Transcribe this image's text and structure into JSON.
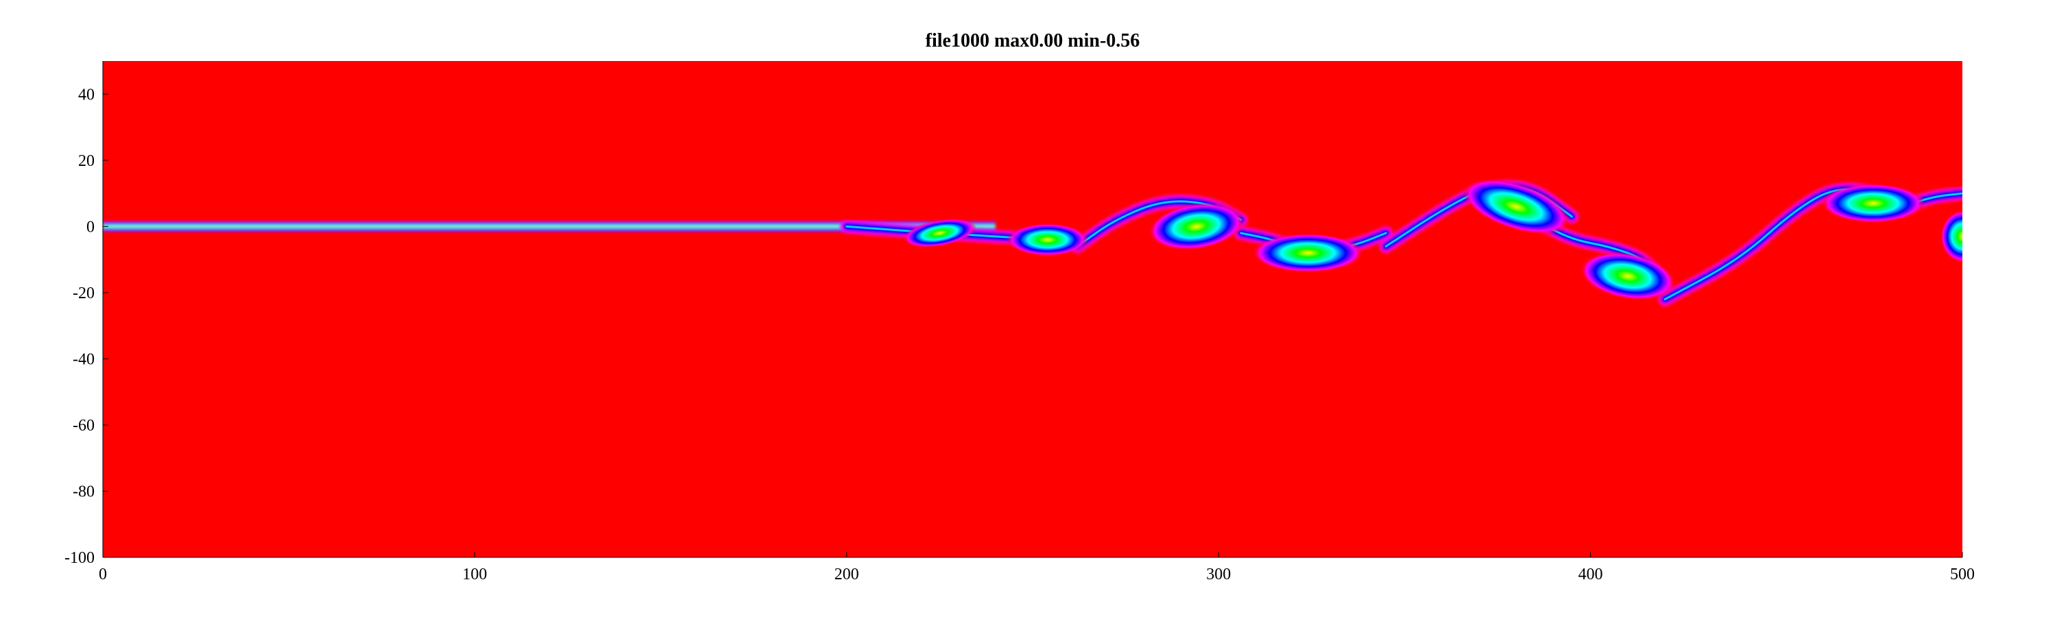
{
  "chart_data": {
    "type": "heatmap",
    "title": "file1000 max0.00 min-0.56",
    "xlabel": "",
    "ylabel": "",
    "xlim": [
      0,
      500
    ],
    "ylim": [
      -100,
      50
    ],
    "x_ticks": [
      0,
      100,
      200,
      300,
      400,
      500
    ],
    "y_ticks": [
      40,
      20,
      0,
      -20,
      -40,
      -60,
      -80,
      -100
    ],
    "x_tick_labels": [
      "0",
      "100",
      "200",
      "300",
      "400",
      "500"
    ],
    "y_tick_labels": [
      "40",
      "20",
      "0",
      "-20",
      "-40",
      "-60",
      "-80",
      "-100"
    ],
    "value_range": {
      "max": 0.0,
      "min": -0.56
    },
    "colormap": [
      "#ff0000",
      "#ff00ff",
      "#0000ff",
      "#00ffff",
      "#00ff00",
      "#ffff00"
    ],
    "background_color": "#ff0000",
    "grid": false,
    "jet": {
      "x_start": 0,
      "x_end": 240,
      "y_center": 0,
      "half_width": 1.6
    },
    "vortices": [
      {
        "x": 225,
        "y": -2,
        "rx": 10,
        "ry": 4,
        "tilt": -10
      },
      {
        "x": 254,
        "y": -4,
        "rx": 11,
        "ry": 5,
        "tilt": 0
      },
      {
        "x": 294,
        "y": 0,
        "rx": 13,
        "ry": 7,
        "tilt": -8
      },
      {
        "x": 324,
        "y": -8,
        "rx": 15,
        "ry": 6,
        "tilt": 0
      },
      {
        "x": 380,
        "y": 6,
        "rx": 15,
        "ry": 7,
        "tilt": 18
      },
      {
        "x": 410,
        "y": -15,
        "rx": 13,
        "ry": 7,
        "tilt": 10
      },
      {
        "x": 476,
        "y": 7,
        "rx": 14,
        "ry": 6,
        "tilt": 0
      },
      {
        "x": 500,
        "y": -3,
        "rx": 6,
        "ry": 8,
        "tilt": 0
      }
    ],
    "filaments": [
      {
        "points": [
          [
            200,
            0
          ],
          [
            212,
            -1
          ],
          [
            225,
            -2
          ],
          [
            240,
            -3
          ],
          [
            254,
            -4
          ]
        ]
      },
      {
        "points": [
          [
            262,
            -6
          ],
          [
            272,
            2
          ],
          [
            285,
            8
          ],
          [
            298,
            7
          ],
          [
            306,
            2
          ]
        ]
      },
      {
        "points": [
          [
            306,
            -2
          ],
          [
            315,
            -4
          ],
          [
            324,
            -8
          ],
          [
            336,
            -6
          ],
          [
            345,
            -2
          ]
        ]
      },
      {
        "points": [
          [
            345,
            -6
          ],
          [
            360,
            5
          ],
          [
            372,
            12
          ],
          [
            384,
            12
          ],
          [
            395,
            3
          ]
        ]
      },
      {
        "points": [
          [
            385,
            2
          ],
          [
            395,
            -4
          ],
          [
            405,
            -6
          ],
          [
            415,
            -10
          ],
          [
            420,
            -18
          ]
        ]
      },
      {
        "points": [
          [
            420,
            -22
          ],
          [
            440,
            -10
          ],
          [
            455,
            5
          ],
          [
            466,
            12
          ],
          [
            478,
            10
          ]
        ]
      },
      {
        "points": [
          [
            484,
            6
          ],
          [
            492,
            9
          ],
          [
            500,
            10
          ]
        ]
      }
    ]
  }
}
